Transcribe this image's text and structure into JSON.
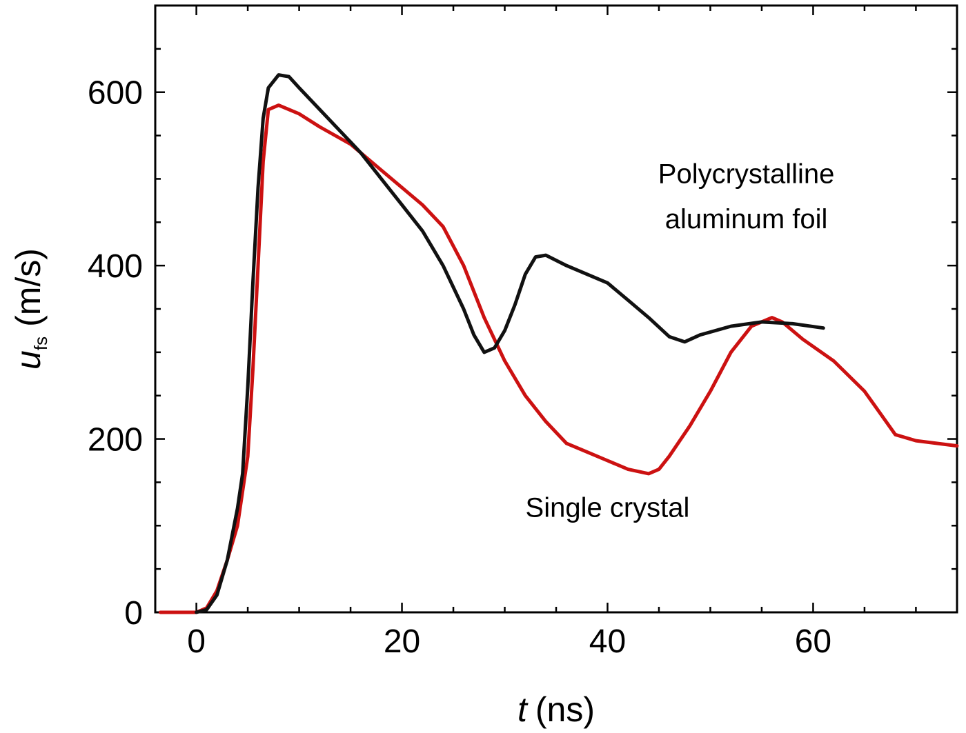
{
  "chart_data": {
    "type": "line",
    "xlabel_var": "t",
    "xlabel_unit": "(ns)",
    "ylabel_var": "u",
    "ylabel_sub": "fs",
    "ylabel_unit": "(m/s)",
    "xlim": [
      -4,
      74
    ],
    "ylim": [
      0,
      700
    ],
    "xticks": [
      0,
      20,
      40,
      60
    ],
    "yticks": [
      0,
      200,
      400,
      600
    ],
    "x_minor_step": 5,
    "y_minor_step": 50,
    "grid": false,
    "annotations": [
      {
        "id": "poly-label-line1",
        "text": "Polycrystalline",
        "x": 53.5,
        "y": 495
      },
      {
        "id": "poly-label-line2",
        "text": "aluminum foil",
        "x": 53.5,
        "y": 443
      },
      {
        "id": "single-label",
        "text": "Single crystal",
        "x": 40,
        "y": 110
      }
    ],
    "series": [
      {
        "id": "single-crystal",
        "color": "#cc1111",
        "points": [
          [
            -3.5,
            0
          ],
          [
            -1.5,
            0
          ],
          [
            0,
            0
          ],
          [
            1,
            5
          ],
          [
            2,
            25
          ],
          [
            3,
            60
          ],
          [
            4,
            100
          ],
          [
            5,
            180
          ],
          [
            5.5,
            280
          ],
          [
            6,
            400
          ],
          [
            6.5,
            520
          ],
          [
            7,
            580
          ],
          [
            8,
            585
          ],
          [
            10,
            575
          ],
          [
            12,
            560
          ],
          [
            15,
            540
          ],
          [
            18,
            510
          ],
          [
            20,
            490
          ],
          [
            22,
            470
          ],
          [
            24,
            445
          ],
          [
            26,
            400
          ],
          [
            28,
            340
          ],
          [
            30,
            290
          ],
          [
            32,
            250
          ],
          [
            34,
            220
          ],
          [
            36,
            195
          ],
          [
            38,
            185
          ],
          [
            40,
            175
          ],
          [
            42,
            165
          ],
          [
            44,
            160
          ],
          [
            45,
            165
          ],
          [
            46,
            180
          ],
          [
            48,
            215
          ],
          [
            50,
            255
          ],
          [
            52,
            300
          ],
          [
            54,
            330
          ],
          [
            56,
            340
          ],
          [
            57,
            335
          ],
          [
            59,
            315
          ],
          [
            62,
            290
          ],
          [
            65,
            255
          ],
          [
            68,
            205
          ],
          [
            70,
            198
          ],
          [
            74,
            192
          ]
        ]
      },
      {
        "id": "polycrystalline",
        "color": "#111111",
        "points": [
          [
            0,
            0
          ],
          [
            1,
            3
          ],
          [
            2,
            20
          ],
          [
            3,
            60
          ],
          [
            4,
            120
          ],
          [
            4.5,
            160
          ],
          [
            5,
            260
          ],
          [
            5.5,
            380
          ],
          [
            6,
            490
          ],
          [
            6.5,
            570
          ],
          [
            7,
            605
          ],
          [
            8,
            620
          ],
          [
            9,
            618
          ],
          [
            10,
            605
          ],
          [
            12,
            580
          ],
          [
            14,
            555
          ],
          [
            16,
            530
          ],
          [
            18,
            500
          ],
          [
            20,
            470
          ],
          [
            22,
            440
          ],
          [
            24,
            400
          ],
          [
            26,
            350
          ],
          [
            27,
            320
          ],
          [
            28,
            300
          ],
          [
            29,
            305
          ],
          [
            30,
            325
          ],
          [
            31,
            355
          ],
          [
            32,
            390
          ],
          [
            33,
            410
          ],
          [
            34,
            412
          ],
          [
            36,
            400
          ],
          [
            38,
            390
          ],
          [
            40,
            380
          ],
          [
            42,
            360
          ],
          [
            44,
            340
          ],
          [
            46,
            318
          ],
          [
            47.5,
            312
          ],
          [
            49,
            320
          ],
          [
            52,
            330
          ],
          [
            55,
            335
          ],
          [
            58,
            333
          ],
          [
            61,
            328
          ]
        ]
      }
    ]
  }
}
